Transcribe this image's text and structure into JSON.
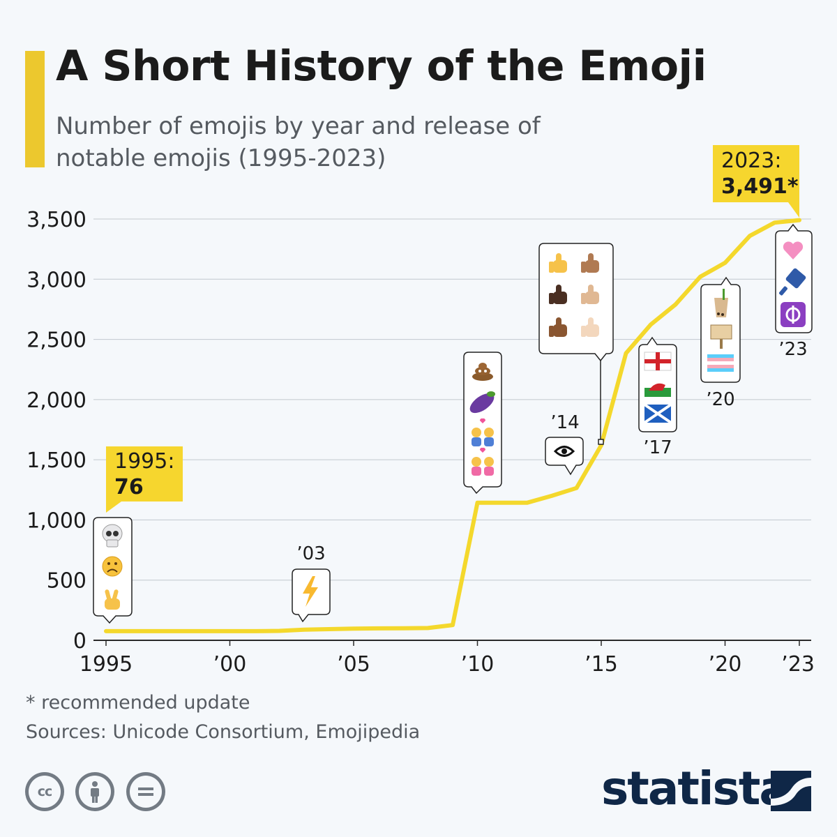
{
  "title": "A Short History of the Emoji",
  "subtitle": "Number of emojis by year and release of notable emojis (1995-2023)",
  "footnote": "* recommended update",
  "sources": "Sources: Unicode Consortium, Emojipedia",
  "brand": "statista",
  "colors": {
    "accent": "#ecc82e",
    "line": "#f4d82c",
    "callout": "#f6d62e",
    "grid": "#c2c8ce",
    "background": "#f5f8fb",
    "brand": "#0f2747"
  },
  "chart_data": {
    "type": "line",
    "x": [
      1995,
      1996,
      1997,
      1998,
      1999,
      2000,
      2001,
      2002,
      2003,
      2004,
      2005,
      2006,
      2007,
      2008,
      2009,
      2010,
      2011,
      2012,
      2013,
      2014,
      2015,
      2016,
      2017,
      2018,
      2019,
      2020,
      2021,
      2022,
      2023
    ],
    "series": [
      {
        "values": [
          76,
          76,
          76,
          76,
          76,
          76,
          76,
          78,
          88,
          93,
          97,
          99,
          100,
          102,
          127,
          1143,
          1143,
          1143,
          1200,
          1265,
          1620,
          2385,
          2623,
          2790,
          3020,
          3136,
          3360,
          3470,
          3491
        ]
      }
    ],
    "ylim": [
      0,
      3600
    ],
    "yticks": [
      0,
      500,
      1000,
      1500,
      2000,
      2500,
      3000,
      3500
    ],
    "ytick_labels": [
      "0",
      "500",
      "1,000",
      "1,500",
      "2,000",
      "2,500",
      "3,000",
      "3,500"
    ],
    "xticks": [
      1995,
      2000,
      2005,
      2010,
      2015,
      2020,
      2023
    ],
    "xtick_labels": [
      "1995",
      "’00",
      "’05",
      "’10",
      "’15",
      "’20",
      "’23"
    ],
    "grid": true,
    "callouts": {
      "start": {
        "year_label": "1995:",
        "value_label": "76"
      },
      "end": {
        "year_label": "2023:",
        "value_label": "3,491*"
      }
    },
    "annotations": [
      {
        "year": 1995,
        "label": "",
        "emojis": [
          "skull",
          "frowning face",
          "victory hand"
        ]
      },
      {
        "year": 2003,
        "label": "’03",
        "emojis": [
          "high voltage"
        ]
      },
      {
        "year": 2010,
        "label": "",
        "emojis": [
          "pile of poo",
          "eggplant",
          "couple with heart",
          "couple with heart"
        ]
      },
      {
        "year": 2014,
        "label": "’14",
        "emojis": [
          "eye in speech bubble"
        ]
      },
      {
        "year": 2015,
        "label": "",
        "emojis": [
          "thumbs up skin tones"
        ]
      },
      {
        "year": 2017,
        "label": "’17",
        "emojis": [
          "flag england",
          "flag wales",
          "flag scotland"
        ]
      },
      {
        "year": 2020,
        "label": "’20",
        "emojis": [
          "bubble tea",
          "placard",
          "transgender flag"
        ]
      },
      {
        "year": 2023,
        "label": "’23",
        "emojis": [
          "pink heart",
          "hair pick",
          "khanda"
        ]
      }
    ]
  }
}
